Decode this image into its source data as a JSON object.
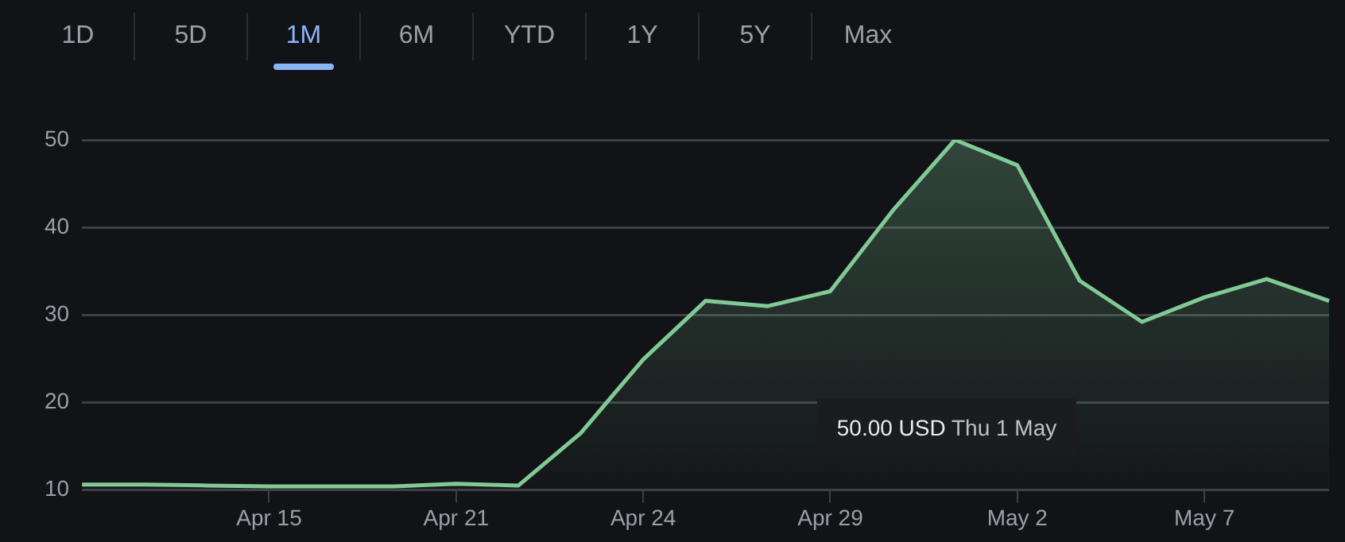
{
  "chart_data": {
    "type": "area",
    "categories": [
      null,
      null,
      null,
      "Apr 15",
      null,
      null,
      "Apr 21",
      null,
      null,
      "Apr 24",
      null,
      null,
      "Apr 29",
      null,
      null,
      "May 2",
      null,
      null,
      "May 7",
      null,
      null
    ],
    "series": [
      {
        "color": "#81c995",
        "values": [
          10.6,
          10.6,
          10.5,
          10.4,
          10.4,
          10.4,
          10.7,
          10.5,
          16.5,
          24.9,
          31.6,
          31.0,
          32.7,
          41.9,
          50.0,
          47.1,
          33.9,
          29.2,
          32.0,
          34.1,
          31.6
        ]
      }
    ],
    "ylim": [
      10,
      50
    ],
    "yticks": [
      10,
      20,
      30,
      40,
      50
    ],
    "grid": "y",
    "legend": false,
    "marker": "none",
    "line_style": "solid",
    "annotations": [
      "1D",
      "5D",
      "1M",
      "6M",
      "YTD",
      "1Y",
      "5Y",
      "Max",
      "50.00 USD  Thu 1 May"
    ]
  }
}
